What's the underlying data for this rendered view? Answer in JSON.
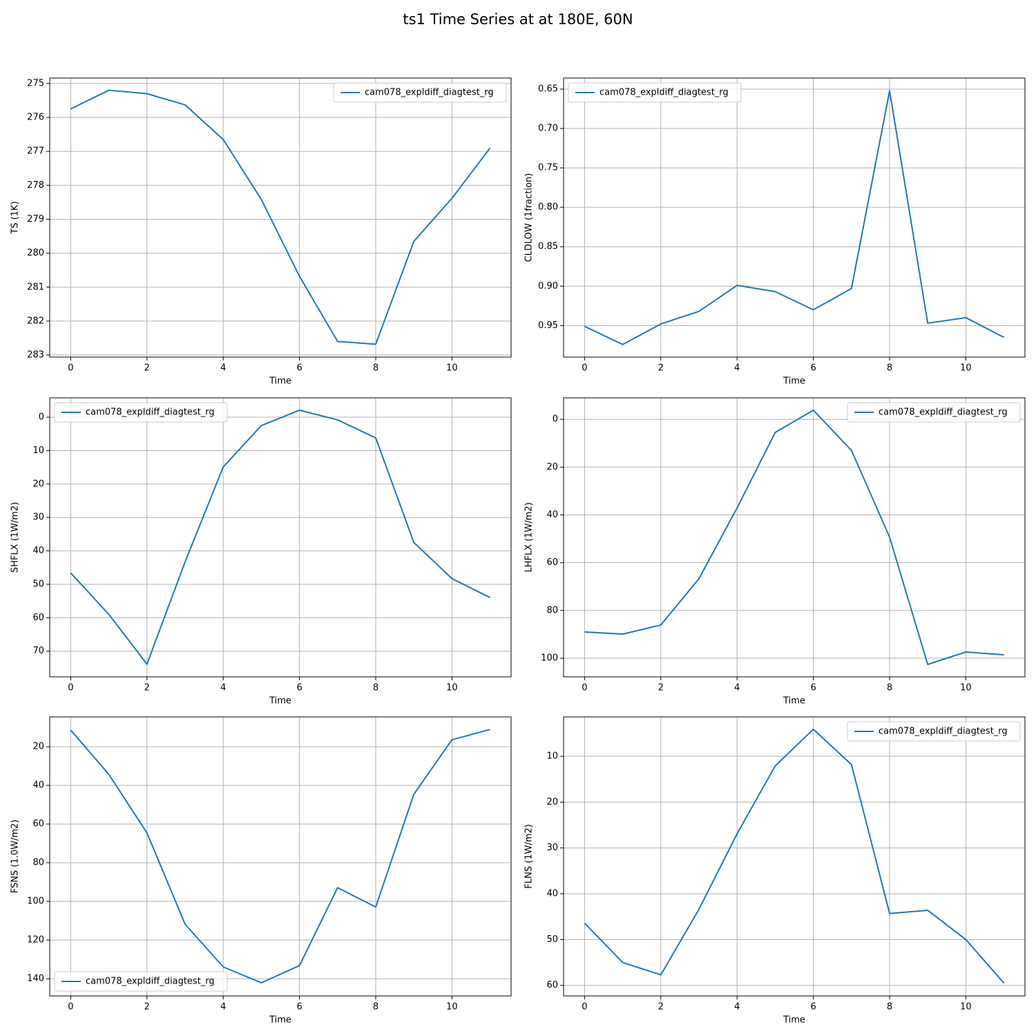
{
  "title": "ts1 Time Series at at 180E, 60N",
  "chart_data": [
    {
      "type": "line",
      "xlabel": "Time",
      "ylabel": "TS (1K)",
      "grid": true,
      "legend": "upper right",
      "y_inverted": true,
      "x": [
        0,
        1,
        2,
        3,
        4,
        5,
        6,
        7,
        8,
        9,
        10,
        11
      ],
      "xlim": [
        -0.55,
        11.55
      ],
      "xticks": [
        0,
        2,
        4,
        6,
        8,
        10
      ],
      "ylim": [
        274.84,
        283.06
      ],
      "yticks": [
        275,
        276,
        277,
        278,
        279,
        280,
        281,
        282,
        283
      ],
      "series": [
        {
          "name": "cam078_expldiff_diagtest_rg",
          "color": "#1f77b4",
          "values": [
            275.75,
            275.2,
            275.3,
            275.63,
            276.65,
            278.42,
            280.68,
            282.6,
            282.68,
            279.65,
            278.38,
            276.9
          ]
        }
      ]
    },
    {
      "type": "line",
      "xlabel": "Time",
      "ylabel": "CLDLOW (1fraction)",
      "grid": true,
      "legend": "upper left",
      "y_inverted": true,
      "x": [
        0,
        1,
        2,
        3,
        4,
        5,
        6,
        7,
        8,
        9,
        10,
        11
      ],
      "xlim": [
        -0.55,
        11.55
      ],
      "xticks": [
        0,
        2,
        4,
        6,
        8,
        10
      ],
      "ylim": [
        0.636,
        0.99
      ],
      "yticks": [
        0.65,
        {
          "value": 0.7,
          "label": "0.70"
        },
        0.75,
        {
          "value": 0.8,
          "label": "0.80"
        },
        0.85,
        {
          "value": 0.9,
          "label": "0.90"
        },
        0.95
      ],
      "series": [
        {
          "name": "cam078_expldiff_diagtest_rg",
          "color": "#1f77b4",
          "values": [
            0.951,
            0.974,
            0.948,
            0.932,
            0.899,
            0.907,
            0.93,
            0.903,
            0.652,
            0.947,
            0.94,
            0.965
          ]
        }
      ]
    },
    {
      "type": "line",
      "xlabel": "Time",
      "ylabel": "SHFLX (1W/m2)",
      "grid": true,
      "legend": "upper left",
      "y_inverted": true,
      "x": [
        0,
        1,
        2,
        3,
        4,
        5,
        6,
        7,
        8,
        9,
        10,
        11
      ],
      "xlim": [
        -0.55,
        11.55
      ],
      "xticks": [
        0,
        2,
        4,
        6,
        8,
        10
      ],
      "ylim": [
        -5.8,
        77.7
      ],
      "yticks": [
        0,
        10,
        20,
        30,
        40,
        50,
        60,
        70
      ],
      "series": [
        {
          "name": "cam078_expldiff_diagtest_rg",
          "color": "#1f77b4",
          "values": [
            46.6,
            59.0,
            73.9,
            43.3,
            14.9,
            2.5,
            -2.1,
            0.8,
            6.2,
            37.5,
            48.3,
            54.0
          ]
        }
      ]
    },
    {
      "type": "line",
      "xlabel": "Time",
      "ylabel": "LHFLX (1W/m2)",
      "grid": true,
      "legend": "upper right",
      "y_inverted": true,
      "x": [
        0,
        1,
        2,
        3,
        4,
        5,
        6,
        7,
        8,
        9,
        10,
        11
      ],
      "xlim": [
        -0.55,
        11.55
      ],
      "xticks": [
        0,
        2,
        4,
        6,
        8,
        10
      ],
      "ylim": [
        -9.0,
        107.8
      ],
      "yticks": [
        0,
        20,
        40,
        60,
        80,
        100
      ],
      "series": [
        {
          "name": "cam078_expldiff_diagtest_rg",
          "color": "#1f77b4",
          "values": [
            89.0,
            89.9,
            86.1,
            66.7,
            37.1,
            5.5,
            -3.8,
            13.0,
            49.3,
            102.6,
            97.4,
            98.6
          ]
        }
      ]
    },
    {
      "type": "line",
      "xlabel": "Time",
      "ylabel": "FSNS (1.0W/m2)",
      "grid": true,
      "legend": "lower left",
      "y_inverted": true,
      "x": [
        0,
        1,
        2,
        3,
        4,
        5,
        6,
        7,
        8,
        9,
        10,
        11
      ],
      "xlim": [
        -0.55,
        11.55
      ],
      "xticks": [
        0,
        2,
        4,
        6,
        8,
        10
      ],
      "ylim": [
        4.6,
        148.9
      ],
      "yticks": [
        20,
        40,
        60,
        80,
        100,
        120,
        140
      ],
      "series": [
        {
          "name": "cam078_expldiff_diagtest_rg",
          "color": "#1f77b4",
          "values": [
            11.4,
            34.3,
            64.6,
            111.8,
            133.9,
            142.1,
            133.2,
            92.9,
            102.9,
            44.6,
            16.4,
            11.1
          ]
        }
      ]
    },
    {
      "type": "line",
      "xlabel": "Time",
      "ylabel": "FLNS (1W/m2)",
      "grid": true,
      "legend": "upper right",
      "y_inverted": true,
      "x": [
        0,
        1,
        2,
        3,
        4,
        5,
        6,
        7,
        8,
        9,
        10,
        11
      ],
      "xlim": [
        -0.55,
        11.55
      ],
      "xticks": [
        0,
        2,
        4,
        6,
        8,
        10
      ],
      "ylim": [
        1.4,
        62.3
      ],
      "yticks": [
        10,
        20,
        30,
        40,
        50,
        60
      ],
      "series": [
        {
          "name": "cam078_expldiff_diagtest_rg",
          "color": "#1f77b4",
          "values": [
            46.4,
            55.0,
            57.7,
            43.4,
            26.9,
            12.1,
            4.1,
            11.8,
            44.3,
            43.6,
            50.0,
            59.5
          ]
        }
      ]
    }
  ]
}
